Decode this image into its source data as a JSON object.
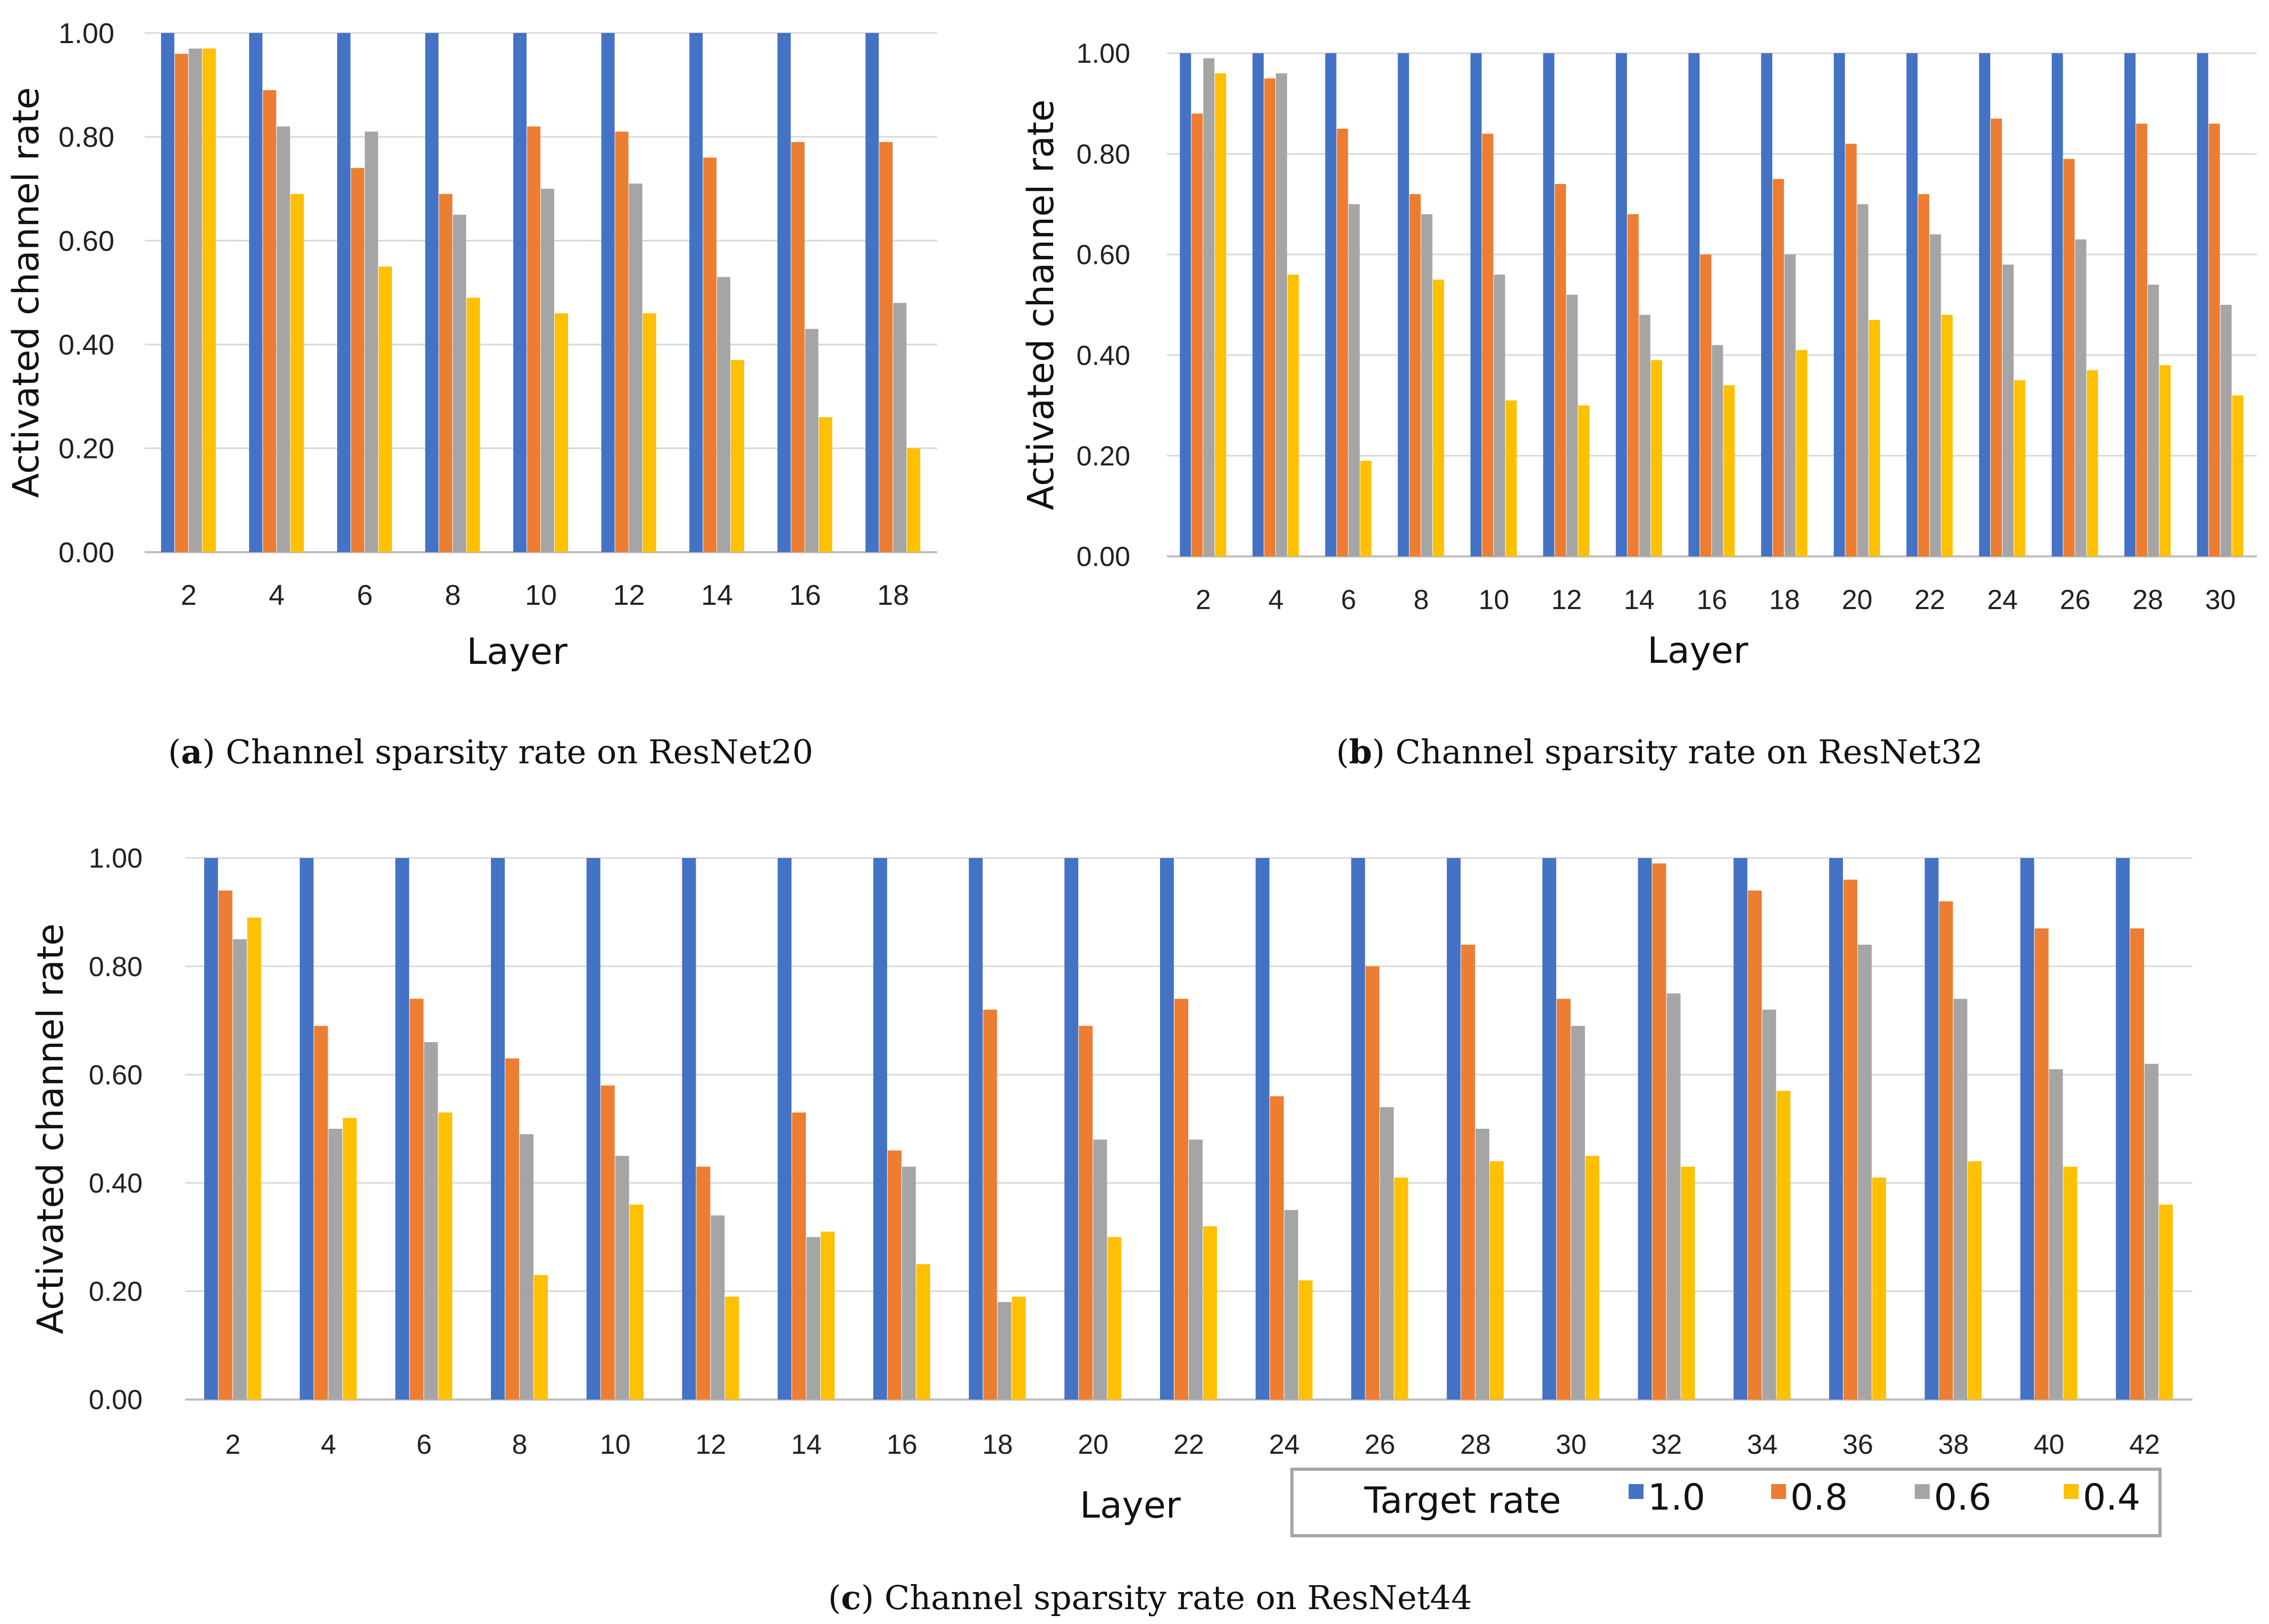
{
  "colors": {
    "series_1_0": "#4472C4",
    "series_0_8": "#ED7D31",
    "series_0_6": "#A5A5A5",
    "series_0_4": "#FFC000",
    "grid": "#d9d9d9",
    "axis": "#bfbfbf"
  },
  "legend": {
    "title": "Target rate",
    "entries": [
      "1.0",
      "0.8",
      "0.6",
      "0.4"
    ]
  },
  "chart_data": [
    {
      "type": "bar",
      "caption_letter": "a",
      "caption_text": "Channel sparsity rate on ResNet20",
      "xlabel": "Layer",
      "ylabel": "Activated channel rate",
      "ylim": [
        0,
        1
      ],
      "yticks": [
        "0.00",
        "0.20",
        "0.40",
        "0.60",
        "0.80",
        "1.00"
      ],
      "categories": [
        "2",
        "4",
        "6",
        "8",
        "10",
        "12",
        "14",
        "16",
        "18"
      ],
      "series": [
        {
          "name": "1.0",
          "values": [
            1.0,
            1.0,
            1.0,
            1.0,
            1.0,
            1.0,
            1.0,
            1.0,
            1.0
          ]
        },
        {
          "name": "0.8",
          "values": [
            0.96,
            0.89,
            0.74,
            0.69,
            0.82,
            0.81,
            0.76,
            0.79,
            0.79
          ]
        },
        {
          "name": "0.6",
          "values": [
            0.97,
            0.82,
            0.81,
            0.65,
            0.7,
            0.71,
            0.53,
            0.43,
            0.48
          ]
        },
        {
          "name": "0.4",
          "values": [
            0.97,
            0.69,
            0.55,
            0.49,
            0.46,
            0.46,
            0.37,
            0.26,
            0.2
          ]
        }
      ]
    },
    {
      "type": "bar",
      "caption_letter": "b",
      "caption_text": "Channel sparsity rate on ResNet32",
      "xlabel": "Layer",
      "ylabel": "Activated channel rate",
      "ylim": [
        0,
        1
      ],
      "yticks": [
        "0.00",
        "0.20",
        "0.40",
        "0.60",
        "0.80",
        "1.00"
      ],
      "categories": [
        "2",
        "4",
        "6",
        "8",
        "10",
        "12",
        "14",
        "16",
        "18",
        "20",
        "22",
        "24",
        "26",
        "28",
        "30"
      ],
      "series": [
        {
          "name": "1.0",
          "values": [
            1.0,
            1.0,
            1.0,
            1.0,
            1.0,
            1.0,
            1.0,
            1.0,
            1.0,
            1.0,
            1.0,
            1.0,
            1.0,
            1.0,
            1.0
          ]
        },
        {
          "name": "0.8",
          "values": [
            0.88,
            0.95,
            0.85,
            0.72,
            0.84,
            0.74,
            0.68,
            0.6,
            0.75,
            0.82,
            0.72,
            0.87,
            0.79,
            0.86,
            0.86
          ]
        },
        {
          "name": "0.6",
          "values": [
            0.99,
            0.96,
            0.7,
            0.68,
            0.56,
            0.52,
            0.48,
            0.42,
            0.6,
            0.7,
            0.64,
            0.58,
            0.63,
            0.54,
            0.5
          ]
        },
        {
          "name": "0.4",
          "values": [
            0.96,
            0.56,
            0.19,
            0.55,
            0.31,
            0.3,
            0.39,
            0.34,
            0.41,
            0.47,
            0.48,
            0.35,
            0.37,
            0.38,
            0.32
          ]
        }
      ]
    },
    {
      "type": "bar",
      "caption_letter": "c",
      "caption_text": "Channel sparsity rate on ResNet44",
      "xlabel": "Layer",
      "ylabel": "Activated channel rate",
      "ylim": [
        0,
        1
      ],
      "yticks": [
        "0.00",
        "0.20",
        "0.40",
        "0.60",
        "0.80",
        "1.00"
      ],
      "categories": [
        "2",
        "4",
        "6",
        "8",
        "10",
        "12",
        "14",
        "16",
        "18",
        "20",
        "22",
        "24",
        "26",
        "28",
        "30",
        "32",
        "34",
        "36",
        "38",
        "40",
        "42"
      ],
      "series": [
        {
          "name": "1.0",
          "values": [
            1.0,
            1.0,
            1.0,
            1.0,
            1.0,
            1.0,
            1.0,
            1.0,
            1.0,
            1.0,
            1.0,
            1.0,
            1.0,
            1.0,
            1.0,
            1.0,
            1.0,
            1.0,
            1.0,
            1.0,
            1.0
          ]
        },
        {
          "name": "0.8",
          "values": [
            0.94,
            0.69,
            0.74,
            0.63,
            0.58,
            0.43,
            0.53,
            0.46,
            0.72,
            0.69,
            0.74,
            0.56,
            0.8,
            0.84,
            0.74,
            0.99,
            0.94,
            0.96,
            0.92,
            0.87,
            0.87
          ]
        },
        {
          "name": "0.6",
          "values": [
            0.85,
            0.5,
            0.66,
            0.49,
            0.45,
            0.34,
            0.3,
            0.43,
            0.18,
            0.48,
            0.48,
            0.35,
            0.54,
            0.5,
            0.69,
            0.75,
            0.72,
            0.84,
            0.74,
            0.61,
            0.62
          ]
        },
        {
          "name": "0.4",
          "values": [
            0.89,
            0.52,
            0.53,
            0.23,
            0.36,
            0.19,
            0.31,
            0.25,
            0.19,
            0.3,
            0.32,
            0.22,
            0.41,
            0.44,
            0.45,
            0.43,
            0.57,
            0.41,
            0.44,
            0.43,
            0.36
          ]
        }
      ]
    }
  ]
}
